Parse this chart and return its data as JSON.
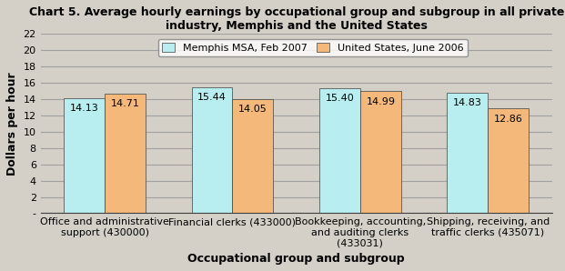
{
  "title": "Chart 5. Average hourly earnings by occupational group and subgroup in all private\nindustry, Memphis and the United States",
  "xlabel": "Occupational group and subgroup",
  "ylabel": "Dollars per hour",
  "categories": [
    "Office and administrative\nsupport (430000)",
    "Financial clerks (433000)",
    "Bookkeeping, accounting,\nand auditing clerks\n(433031)",
    "Shipping, receiving, and\ntraffic clerks (435071)"
  ],
  "memphis_values": [
    14.13,
    15.44,
    15.4,
    14.83
  ],
  "us_values": [
    14.71,
    14.05,
    14.99,
    12.86
  ],
  "memphis_color": "#b8eef0",
  "us_color": "#f4b97a",
  "background_color": "#d4d0c8",
  "plot_bg_color": "#d4d0c8",
  "ylim": [
    0,
    22
  ],
  "yticks": [
    0,
    2,
    4,
    6,
    8,
    10,
    12,
    14,
    16,
    18,
    20,
    22
  ],
  "ytick_labels": [
    "-",
    "2",
    "4",
    "6",
    "8",
    "10",
    "12",
    "14",
    "16",
    "18",
    "20",
    "22"
  ],
  "legend_memphis": "Memphis MSA, Feb 2007",
  "legend_us": "United States, June 2006",
  "bar_width": 0.32,
  "title_fontsize": 9,
  "axis_label_fontsize": 9,
  "tick_fontsize": 8,
  "value_fontsize": 8,
  "grid_color": "#a0a0a0",
  "bar_edge_color": "#404040"
}
